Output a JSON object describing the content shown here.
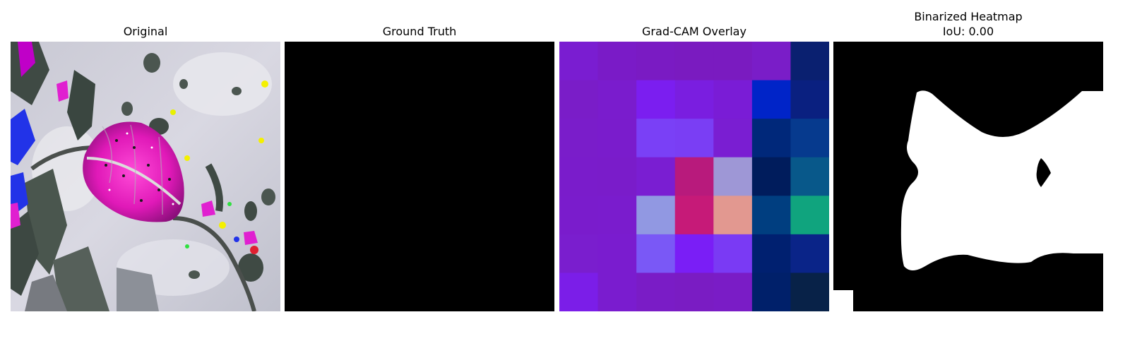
{
  "panels": [
    {
      "id": "original",
      "title": "Original"
    },
    {
      "id": "ground-truth",
      "title": "Ground Truth"
    },
    {
      "id": "gradcam-overlay",
      "title": "Grad-CAM Overlay"
    },
    {
      "id": "binarized-heatmap",
      "title": "Binarized Heatmap",
      "subtitle": "IoU: 0.00"
    }
  ],
  "gradcam_grid": {
    "rows": 7,
    "cols": 7,
    "colors": [
      [
        "#7a1dd1",
        "#7a1bc7",
        "#7a1bc3",
        "#7a1bc0",
        "#7a1bc0",
        "#7a1dc8",
        "#0a2070"
      ],
      [
        "#7a1dc8",
        "#7a1ccd",
        "#7b1ef0",
        "#7a1ee0",
        "#7a1cd6",
        "#0024c8",
        "#0a2080"
      ],
      [
        "#7a1dca",
        "#7a1ccc",
        "#7a40f6",
        "#7a3ef4",
        "#7a1ed2",
        "#00287a",
        "#063a8e"
      ],
      [
        "#7a1ccb",
        "#7a1cca",
        "#7a1ed2",
        "#b81a7c",
        "#9e97d6",
        "#001c5c",
        "#08588a"
      ],
      [
        "#7a1ccc",
        "#7a1ccd",
        "#9198e2",
        "#c61a78",
        "#e29890",
        "#003e80",
        "#10a47e"
      ],
      [
        "#7a1ece",
        "#7a1ccf",
        "#7a58f6",
        "#7a1ef6",
        "#7a3af4",
        "#002070",
        "#0a2488"
      ],
      [
        "#7b1ee8",
        "#7a1ccf",
        "#7a1cc6",
        "#7a1cc3",
        "#7a1cc6",
        "#00206a",
        "#082248"
      ]
    ]
  }
}
